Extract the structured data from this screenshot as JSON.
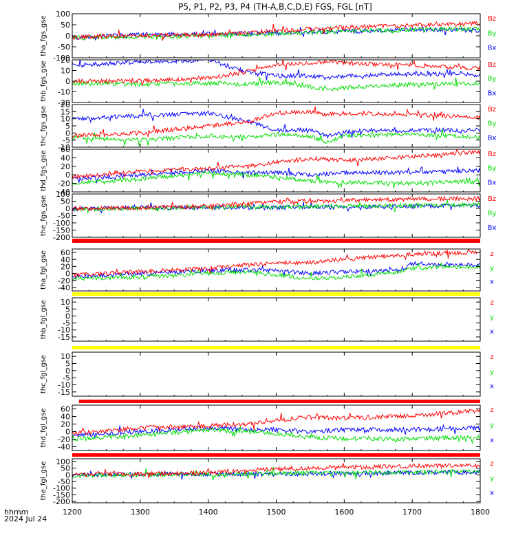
{
  "title": "P5, P1, P2, P3, P4 (TH-A,B,C,D,E) FGS, FGL [nT]",
  "footer": {
    "time_format": "hhmm",
    "date": "2024 Jul 24"
  },
  "xaxis": {
    "range": [
      1200,
      1800
    ],
    "ticks": [
      "1200",
      "1300",
      "1400",
      "1500",
      "1600",
      "1700",
      "1800"
    ]
  },
  "colors": {
    "bz": "#ff0000",
    "by": "#00dd00",
    "bx": "#0000ff",
    "bar_red": "#ff0000",
    "bar_yellow": "#ffff00",
    "axis": "#000000"
  },
  "chart_data": [
    {
      "type": "line",
      "ylabel": "tha_fgs_gse",
      "ylim": [
        -100,
        100
      ],
      "yticks": [
        "100",
        "50",
        "0",
        "-50",
        "-100"
      ],
      "legend": [
        "Bz",
        "By",
        "Bx"
      ],
      "x": [
        1200,
        1300,
        1400,
        1460,
        1500,
        1550,
        1600,
        1680,
        1700,
        1800
      ],
      "series": [
        {
          "name": "Bz",
          "values": [
            -5,
            0,
            5,
            15,
            22,
            30,
            38,
            45,
            48,
            55
          ]
        },
        {
          "name": "By",
          "values": [
            -10,
            -5,
            0,
            5,
            10,
            15,
            20,
            25,
            28,
            30
          ]
        },
        {
          "name": "Bx",
          "values": [
            -8,
            5,
            8,
            10,
            12,
            14,
            20,
            25,
            28,
            24
          ]
        }
      ]
    },
    {
      "type": "line",
      "ylabel": "thb_fgs_gse",
      "ylim": [
        -20,
        20
      ],
      "yticks": [
        "20",
        "10",
        "0",
        "-10",
        "-20"
      ],
      "legend": [
        "Bz",
        "By",
        "Bx"
      ],
      "x": [
        1200,
        1300,
        1400,
        1450,
        1500,
        1550,
        1575,
        1600,
        1700,
        1800
      ],
      "series": [
        {
          "name": "Bz",
          "values": [
            0,
            0,
            3,
            8,
            15,
            17,
            18,
            17,
            15,
            12
          ]
        },
        {
          "name": "By",
          "values": [
            -2,
            -3,
            -2,
            -3,
            -1,
            -5,
            -8,
            -6,
            -3,
            -2
          ]
        },
        {
          "name": "Bx",
          "values": [
            15,
            18,
            20,
            10,
            5,
            5,
            3,
            5,
            7,
            6
          ]
        }
      ]
    },
    {
      "type": "line",
      "ylabel": "thc_fgs_gse",
      "ylim": [
        -10,
        20
      ],
      "yticks": [
        "20",
        "15",
        "10",
        "5",
        "0",
        "-5",
        "-10"
      ],
      "legend": [
        "Bz",
        "By",
        "Bx"
      ],
      "x": [
        1200,
        1300,
        1400,
        1460,
        1500,
        1550,
        1575,
        1600,
        1700,
        1800
      ],
      "series": [
        {
          "name": "Bz",
          "values": [
            -2,
            0,
            5,
            8,
            14,
            15,
            13,
            14,
            13,
            11
          ]
        },
        {
          "name": "By",
          "values": [
            -3,
            -5,
            -2,
            -3,
            -1,
            -2,
            -7,
            -2,
            -1,
            -3
          ]
        },
        {
          "name": "Bx",
          "values": [
            10,
            12,
            14,
            8,
            2,
            2,
            -2,
            1,
            2,
            2
          ]
        }
      ]
    },
    {
      "type": "line",
      "ylabel": "thd_fgs_gse",
      "ylim": [
        -40,
        60
      ],
      "yticks": [
        "60",
        "40",
        "20",
        "0",
        "-20",
        "-40"
      ],
      "legend": [
        "Bz",
        "By",
        "Bx"
      ],
      "x": [
        1200,
        1300,
        1400,
        1460,
        1500,
        1550,
        1600,
        1700,
        1800
      ],
      "series": [
        {
          "name": "Bz",
          "values": [
            -5,
            10,
            15,
            20,
            30,
            38,
            34,
            42,
            55
          ]
        },
        {
          "name": "By",
          "values": [
            -20,
            -10,
            5,
            0,
            -5,
            -15,
            -18,
            -20,
            -15
          ]
        },
        {
          "name": "Bx",
          "values": [
            -10,
            0,
            10,
            5,
            5,
            0,
            5,
            5,
            10
          ]
        }
      ]
    },
    {
      "type": "line",
      "ylabel": "the_fgs_gse",
      "ylim": [
        -200,
        100
      ],
      "yticks": [
        "100",
        "50",
        "0",
        "-50",
        "-100",
        "-150",
        "-200"
      ],
      "legend": [
        "Bz",
        "By",
        "Bx"
      ],
      "x": [
        1200,
        1300,
        1400,
        1500,
        1600,
        1700,
        1800
      ],
      "series": [
        {
          "name": "Bz",
          "values": [
            0,
            5,
            15,
            45,
            55,
            65,
            70
          ]
        },
        {
          "name": "By",
          "values": [
            -5,
            0,
            5,
            10,
            15,
            20,
            25
          ]
        },
        {
          "name": "Bx",
          "values": [
            -5,
            5,
            5,
            5,
            10,
            15,
            20
          ]
        }
      ]
    },
    {
      "type": "line",
      "ylabel": "tha_fgl_gse",
      "ylim": [
        -50,
        70
      ],
      "yticks": [
        "60",
        "40",
        "20",
        "0",
        "-20",
        "-40"
      ],
      "legend": [
        "z",
        "y",
        "x"
      ],
      "x": [
        1200,
        1300,
        1400,
        1460,
        1500,
        1550,
        1600,
        1680,
        1700,
        1800
      ],
      "series": [
        {
          "name": "z",
          "values": [
            -5,
            5,
            15,
            25,
            30,
            32,
            40,
            52,
            55,
            60
          ]
        },
        {
          "name": "y",
          "values": [
            -15,
            -10,
            0,
            5,
            -5,
            -15,
            -10,
            5,
            15,
            20
          ]
        },
        {
          "name": "x",
          "values": [
            -10,
            0,
            8,
            10,
            8,
            0,
            5,
            8,
            28,
            25
          ]
        }
      ]
    },
    {
      "type": "line",
      "ylabel": "thb_fgl_gse",
      "ylim": [
        -18,
        13
      ],
      "yticks": [
        "10",
        "5",
        "0",
        "-5",
        "-10",
        "-15"
      ],
      "legend": [
        "z",
        "y",
        "x"
      ],
      "x": [],
      "series": []
    },
    {
      "type": "line",
      "ylabel": "thc_fgl_gse",
      "ylim": [
        -18,
        13
      ],
      "yticks": [
        "10",
        "5",
        "0",
        "-5",
        "-10",
        "-15"
      ],
      "legend": [
        "z",
        "y",
        "x"
      ],
      "x": [],
      "series": []
    },
    {
      "type": "line",
      "ylabel": "thd_fgl_gse",
      "ylim": [
        -50,
        70
      ],
      "yticks": [
        "60",
        "40",
        "20",
        "0",
        "-20",
        "-40"
      ],
      "legend": [
        "z",
        "y",
        "x"
      ],
      "x": [
        1200,
        1300,
        1400,
        1460,
        1500,
        1550,
        1600,
        1700,
        1800
      ],
      "series": [
        {
          "name": "z",
          "values": [
            -5,
            10,
            15,
            20,
            30,
            38,
            35,
            42,
            55
          ]
        },
        {
          "name": "y",
          "values": [
            -20,
            -10,
            5,
            0,
            -5,
            -15,
            -18,
            -20,
            -15
          ]
        },
        {
          "name": "x",
          "values": [
            -10,
            0,
            10,
            5,
            5,
            0,
            5,
            5,
            10
          ]
        }
      ]
    },
    {
      "type": "line",
      "ylabel": "the_fgl_gse",
      "ylim": [
        -210,
        120
      ],
      "yticks": [
        "100",
        "50",
        "0",
        "-50",
        "-100",
        "-150",
        "-200"
      ],
      "legend": [
        "z",
        "y",
        "x"
      ],
      "x": [
        1200,
        1300,
        1400,
        1500,
        1600,
        1700,
        1800
      ],
      "series": [
        {
          "name": "z",
          "values": [
            0,
            5,
            15,
            45,
            55,
            65,
            70
          ]
        },
        {
          "name": "y",
          "values": [
            -5,
            0,
            5,
            10,
            15,
            20,
            25
          ]
        },
        {
          "name": "x",
          "values": [
            -5,
            5,
            5,
            5,
            10,
            15,
            20
          ]
        }
      ]
    }
  ]
}
